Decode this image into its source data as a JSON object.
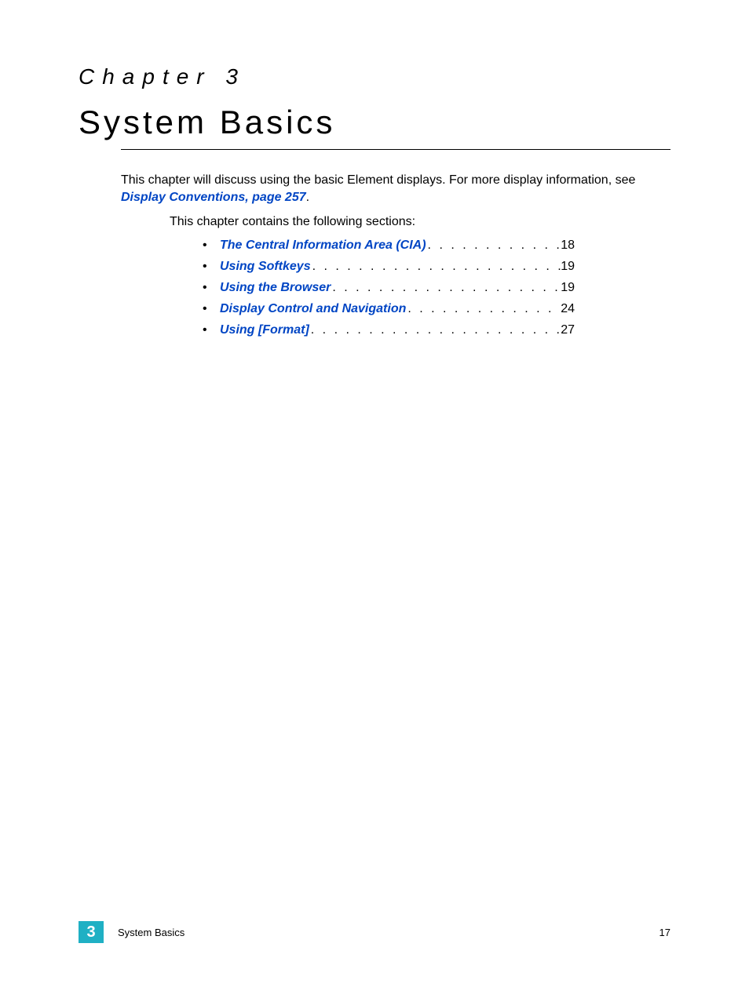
{
  "colors": {
    "link": "#0045c4",
    "badge_bg": "#1fb0c4",
    "badge_fg": "#ffffff",
    "text": "#000000",
    "background": "#ffffff"
  },
  "typography": {
    "chapter_heading_fontsize": 28,
    "chapter_heading_letterspacing": 10,
    "chapter_title_fontsize": 42,
    "chapter_title_letterspacing": 4,
    "body_fontsize": 16,
    "footer_fontsize": 13,
    "badge_fontsize": 20
  },
  "header": {
    "chapter_label": "Chapter 3",
    "chapter_title": "System Basics"
  },
  "intro": {
    "text_before_link": "This chapter will discuss using the basic Element displays. For more display information, see ",
    "link_text": "Display Conventions, page 257",
    "text_after_link": "."
  },
  "sections_intro": "This chapter contains the following sections:",
  "toc": [
    {
      "title": "The Central Information Area (CIA)",
      "page": "18"
    },
    {
      "title": "Using Softkeys",
      "page": "19"
    },
    {
      "title": "Using the Browser",
      "page": "19"
    },
    {
      "title": "Display Control and Navigation",
      "page": "24"
    },
    {
      "title": "Using [Format]",
      "page": "27"
    }
  ],
  "footer": {
    "chapter_number": "3",
    "chapter_title": "System Basics",
    "page_number": "17"
  }
}
